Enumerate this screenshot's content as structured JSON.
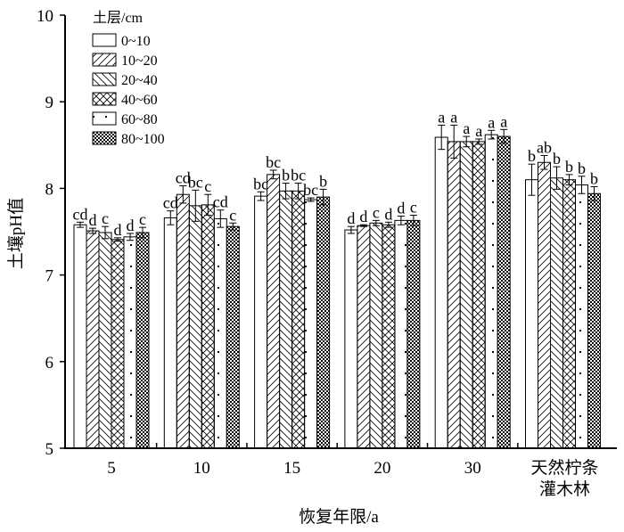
{
  "chart_data": {
    "type": "bar",
    "title": "",
    "xlabel": "恢复年限/a",
    "ylabel": "土壤pH值",
    "ylim": [
      5,
      10
    ],
    "yticks": [
      "5",
      "6",
      "7",
      "8",
      "9",
      "10"
    ],
    "categories": [
      "5",
      "10",
      "15",
      "20",
      "30",
      "天然柠条灌木林"
    ],
    "category_lines": [
      [
        "5"
      ],
      [
        "10"
      ],
      [
        "15"
      ],
      [
        "20"
      ],
      [
        "30"
      ],
      [
        "天然柠条",
        "灌木林"
      ]
    ],
    "legend_title": "土层/cm",
    "legend_position": "top-left",
    "series": [
      {
        "name": "0~10",
        "pattern": "blank",
        "values": [
          7.58,
          7.66,
          7.91,
          7.52,
          8.59,
          8.1
        ],
        "errors": [
          0.03,
          0.08,
          0.05,
          0.04,
          0.14,
          0.18
        ],
        "letters": [
          "cd",
          "cd",
          "bc",
          "d",
          "a",
          "b"
        ]
      },
      {
        "name": "10~20",
        "pattern": "slash",
        "values": [
          7.51,
          7.93,
          8.16,
          7.57,
          8.54,
          8.3
        ],
        "errors": [
          0.03,
          0.1,
          0.05,
          0.01,
          0.19,
          0.08
        ],
        "letters": [
          "d",
          "cd",
          "bc",
          "d",
          "a",
          "ab"
        ]
      },
      {
        "name": "20~40",
        "pattern": "backslash",
        "values": [
          7.49,
          7.8,
          7.97,
          7.6,
          8.54,
          8.12
        ],
        "errors": [
          0.07,
          0.18,
          0.09,
          0.03,
          0.06,
          0.13
        ],
        "letters": [
          "c",
          "bc",
          "b",
          "c",
          "a",
          "b"
        ]
      },
      {
        "name": "40~60",
        "pattern": "cross",
        "values": [
          7.41,
          7.81,
          7.97,
          7.58,
          8.54,
          8.1
        ],
        "errors": [
          0.02,
          0.12,
          0.09,
          0.03,
          0.03,
          0.06
        ],
        "letters": [
          "d",
          "c",
          "bc",
          "d",
          "a",
          "b"
        ]
      },
      {
        "name": "60~80",
        "pattern": "dots",
        "values": [
          7.44,
          7.65,
          7.87,
          7.63,
          8.62,
          8.04
        ],
        "errors": [
          0.04,
          0.1,
          0.02,
          0.05,
          0.05,
          0.1
        ],
        "letters": [
          "d",
          "cd",
          "bc",
          "d",
          "a",
          "b"
        ]
      },
      {
        "name": "80~100",
        "pattern": "checker",
        "values": [
          7.49,
          7.56,
          7.9,
          7.63,
          8.6,
          7.94
        ],
        "errors": [
          0.06,
          0.04,
          0.09,
          0.06,
          0.08,
          0.08
        ],
        "letters": [
          "c",
          "c",
          "b",
          "c",
          "a",
          "b"
        ]
      }
    ]
  }
}
